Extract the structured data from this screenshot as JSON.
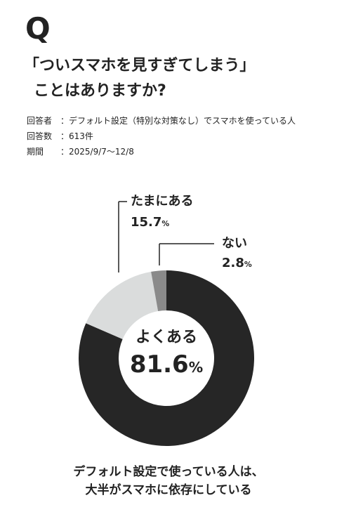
{
  "header": {
    "mark": "Q",
    "title_lines": [
      "「ついスマホを見すぎてしまう」",
      "ことはありますか?"
    ]
  },
  "meta": [
    {
      "label": "回答者",
      "value": "：デフォルト設定（特別な対策なし）でスマホを使っている人"
    },
    {
      "label": "回答数",
      "value": "：613件"
    },
    {
      "label": "期間",
      "value": "：2025/9/7〜12/8"
    }
  ],
  "chart_data": {
    "type": "donut",
    "categories": [
      "よくある",
      "たまにある",
      "ない"
    ],
    "values": [
      81.6,
      15.7,
      2.8
    ],
    "value_labels": [
      "81.6%",
      "15.7%",
      "2.8%"
    ],
    "colors": [
      "#262626",
      "#dadcdc",
      "#8a8a8a"
    ]
  },
  "footer": {
    "lines": [
      "デフォルト設定で使っている人は、",
      "大半がスマホに依存にしている"
    ]
  }
}
